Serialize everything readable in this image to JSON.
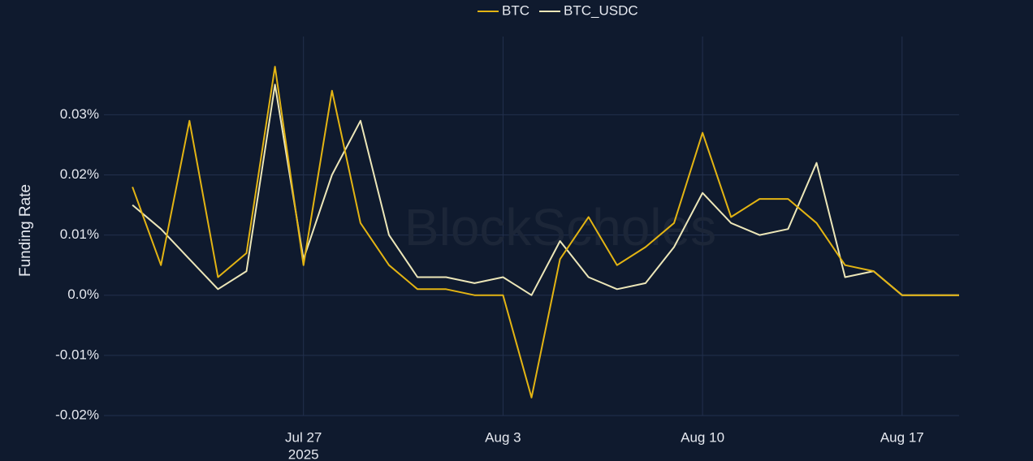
{
  "chart_data": {
    "type": "line",
    "y_axis_label": "Funding Rate",
    "watermark": "BlockScholes",
    "x": [
      "2025-07-21",
      "2025-07-22",
      "2025-07-23",
      "2025-07-24",
      "2025-07-25",
      "2025-07-26",
      "2025-07-27",
      "2025-07-28",
      "2025-07-29",
      "2025-07-30",
      "2025-07-31",
      "2025-08-01",
      "2025-08-02",
      "2025-08-03",
      "2025-08-04",
      "2025-08-05",
      "2025-08-06",
      "2025-08-07",
      "2025-08-08",
      "2025-08-09",
      "2025-08-10",
      "2025-08-11",
      "2025-08-12",
      "2025-08-13",
      "2025-08-14",
      "2025-08-15",
      "2025-08-16",
      "2025-08-17",
      "2025-08-18",
      "2025-08-19"
    ],
    "series": [
      {
        "name": "BTC",
        "color": "#e3b413",
        "values": [
          0.018,
          0.005,
          0.029,
          0.003,
          0.007,
          0.038,
          0.005,
          0.034,
          0.012,
          0.005,
          0.001,
          0.001,
          0.0,
          0.0,
          -0.017,
          0.006,
          0.013,
          0.005,
          0.008,
          0.012,
          0.027,
          0.013,
          0.016,
          0.016,
          0.012,
          0.005,
          0.004,
          0.0,
          0.0,
          0.0
        ]
      },
      {
        "name": "BTC_USDC",
        "color": "#ece6b8",
        "values": [
          0.015,
          0.011,
          0.006,
          0.001,
          0.004,
          0.035,
          0.006,
          0.02,
          0.029,
          0.01,
          0.003,
          0.003,
          0.002,
          0.003,
          0.0,
          0.009,
          0.003,
          0.001,
          0.002,
          0.008,
          0.017,
          0.012,
          0.01,
          0.011,
          0.022,
          0.003,
          0.004,
          0.0,
          0.0,
          0.0
        ]
      }
    ],
    "xlim": [
      "2025-07-20",
      "2025-08-19"
    ],
    "xticks": [
      {
        "value": "2025-07-27",
        "label": "Jul 27",
        "sublabel": "2025"
      },
      {
        "value": "2025-08-03",
        "label": "Aug 3"
      },
      {
        "value": "2025-08-10",
        "label": "Aug 10"
      },
      {
        "value": "2025-08-17",
        "label": "Aug 17"
      }
    ],
    "ylim": [
      -0.02,
      0.043
    ],
    "yticks": [
      {
        "value": -0.02,
        "label": "-0.02%"
      },
      {
        "value": -0.01,
        "label": "-0.01%"
      },
      {
        "value": 0,
        "label": "0.0%"
      },
      {
        "value": 0.01,
        "label": "0.01%"
      },
      {
        "value": 0.02,
        "label": "0.02%"
      },
      {
        "value": 0.03,
        "label": "0.03%"
      }
    ],
    "grid": true
  }
}
